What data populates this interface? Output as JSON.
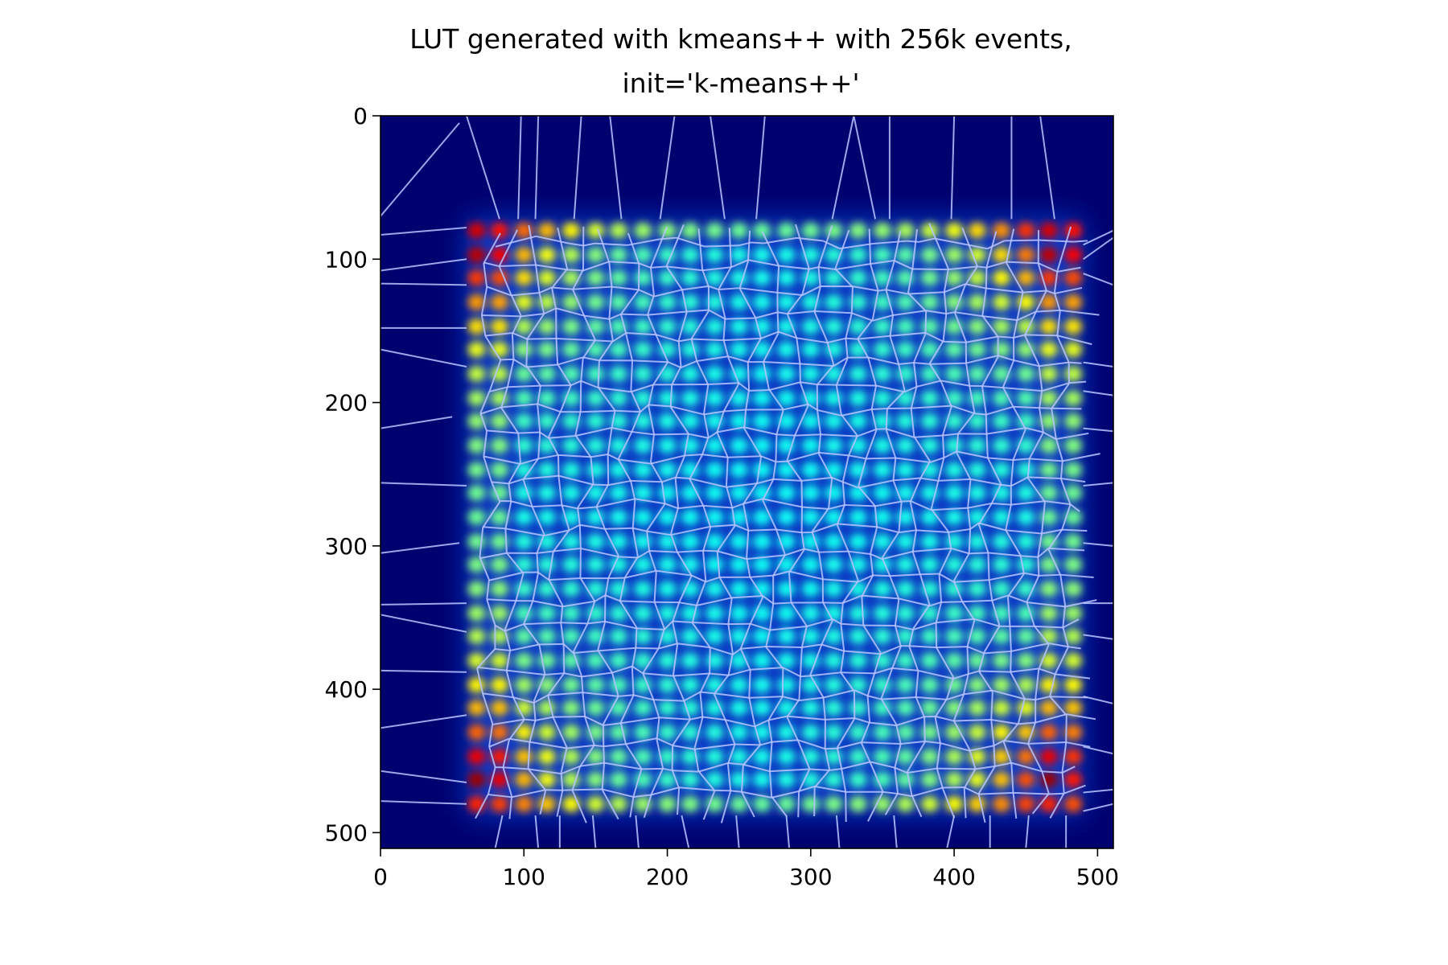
{
  "chart_data": {
    "type": "heatmap",
    "title_lines": [
      "LUT generated with kmeans++ with 256k events,",
      "init='k-means++'"
    ],
    "colormap": "jet",
    "xlim": [
      0,
      511
    ],
    "ylim": [
      511,
      0
    ],
    "x_ticks": [
      0,
      100,
      200,
      300,
      400,
      500
    ],
    "y_ticks": [
      0,
      100,
      200,
      300,
      400,
      500
    ],
    "x_tick_labels": [
      "0",
      "100",
      "200",
      "300",
      "400",
      "500"
    ],
    "y_tick_labels": [
      "0",
      "100",
      "200",
      "300",
      "400",
      "500"
    ],
    "overlay": "voronoi cell boundaries of k-means++ cluster centers",
    "grid": false,
    "crystal_columns": [
      67,
      83,
      100,
      116,
      133,
      150,
      166,
      183,
      200,
      216,
      233,
      250,
      266,
      283,
      300,
      316,
      333,
      350,
      366,
      383,
      400,
      416,
      433,
      450,
      466,
      483
    ],
    "crystal_rows": [
      80,
      97,
      113,
      130,
      147,
      163,
      180,
      197,
      213,
      230,
      247,
      263,
      280,
      297,
      313,
      330,
      347,
      363,
      380,
      397,
      413,
      430,
      447,
      463,
      480
    ],
    "colors": {
      "background": "#00006e",
      "low": "#0a3cc8",
      "mid": "#18a0a0",
      "high": "#d7e632",
      "peak": "#7a0000",
      "overlay_lines": "#b8c4ff"
    }
  }
}
